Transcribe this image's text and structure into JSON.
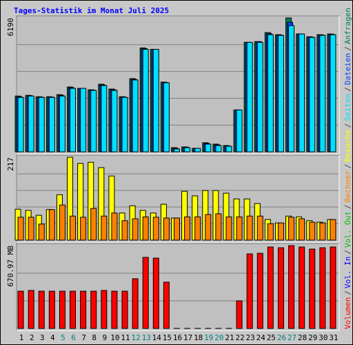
{
  "chart_data": [
    {
      "type": "bar",
      "title": "Tages-Statistik im Monat Juli 2025",
      "ylim": [
        0,
        6190
      ],
      "yticks": [
        6190
      ],
      "grid_divisions": 5,
      "series": [
        {
          "color": "#00805C",
          "values": [
            2579,
            2611,
            2547,
            2547,
            2644,
            2998,
            2934,
            2869,
            3127,
            2902,
            2547,
            3385,
            4804,
            4739,
            3224,
            193,
            226,
            161,
            419,
            355,
            290,
            1934,
            5062,
            5094,
            5513,
            5416,
            6190,
            5449,
            5320,
            5416,
            5449
          ]
        },
        {
          "color": "#0040FF",
          "values": [
            2540,
            2590,
            2530,
            2530,
            2610,
            2960,
            2934,
            2850,
            3090,
            2870,
            2530,
            3350,
            4770,
            4739,
            3205,
            160,
            210,
            161,
            385,
            320,
            270,
            1934,
            5062,
            5094,
            5460,
            5400,
            5990,
            5449,
            5300,
            5400,
            5430
          ]
        },
        {
          "color": "#00E0FF",
          "values": [
            2515,
            2579,
            2515,
            2515,
            2579,
            2934,
            2934,
            2837,
            3063,
            2837,
            2515,
            3321,
            4739,
            4739,
            3192,
            129,
            193,
            161,
            355,
            290,
            258,
            1934,
            5062,
            5062,
            5416,
            5384,
            5836,
            5449,
            5288,
            5384,
            5416
          ]
        }
      ]
    },
    {
      "type": "bar",
      "ylim": [
        0,
        217
      ],
      "yticks": [
        217
      ],
      "grid_divisions": 5,
      "series": [
        {
          "color": "#FFFF00",
          "values": [
            81,
            78,
            65,
            80,
            119,
            217,
            201,
            204,
            190,
            168,
            71,
            90,
            78,
            71,
            94,
            58,
            128,
            116,
            130,
            130,
            123,
            108,
            108,
            96,
            54,
            45,
            63,
            61,
            51,
            47,
            54
          ]
        },
        {
          "color": "#FF8000",
          "values": [
            60,
            60,
            42,
            80,
            92,
            63,
            60,
            83,
            63,
            71,
            51,
            56,
            61,
            60,
            58,
            58,
            61,
            61,
            67,
            69,
            61,
            61,
            63,
            63,
            43,
            45,
            60,
            56,
            47,
            45,
            54
          ]
        }
      ]
    },
    {
      "type": "bar",
      "ylim": [
        0,
        670.97
      ],
      "yticks": [
        {
          "value": 670.97,
          "label": "670.97 MB"
        }
      ],
      "grid_divisions": 3,
      "categories": [
        "1",
        "2",
        "3",
        "4",
        "5",
        "6",
        "7",
        "8",
        "9",
        "10",
        "11",
        "12",
        "13",
        "14",
        "15",
        "16",
        "17",
        "18",
        "19",
        "20",
        "21",
        "22",
        "23",
        "24",
        "25",
        "26",
        "27",
        "28",
        "29",
        "30",
        "31"
      ],
      "category_colors": [
        "#000000",
        "#000000",
        "#000000",
        "#000000",
        "#008080",
        "#008080",
        "#000000",
        "#000000",
        "#000000",
        "#000000",
        "#000000",
        "#008080",
        "#008080",
        "#000000",
        "#000000",
        "#000000",
        "#000000",
        "#000000",
        "#008080",
        "#008080",
        "#000000",
        "#000000",
        "#000000",
        "#000000",
        "#000000",
        "#008080",
        "#008080",
        "#000000",
        "#000000",
        "#000000",
        "#000000"
      ],
      "series": [
        {
          "color": "#FF0000",
          "values": [
            302,
            308,
            302,
            302,
            302,
            302,
            302,
            302,
            308,
            302,
            302,
            403,
            576,
            570,
            375,
            0.5,
            0.5,
            0.5,
            0.5,
            0.5,
            0.5,
            224,
            604,
            609,
            660,
            654,
            670.97,
            660,
            643,
            654,
            660
          ]
        }
      ],
      "legend_separator": "/",
      "legend": [
        {
          "name": "Volumen",
          "color": "#FF0000"
        },
        {
          "name": "Vol. In",
          "color": "#0000FF"
        },
        {
          "name": "Vol. Out",
          "color": "#00C000"
        },
        {
          "name": "Rechner",
          "color": "#FF8000"
        },
        {
          "name": "Besuche",
          "color": "#FFFF00"
        },
        {
          "name": "Seiten",
          "color": "#00E0FF"
        },
        {
          "name": "Dateien",
          "color": "#0040FF"
        },
        {
          "name": "Anfragen",
          "color": "#00805C"
        }
      ]
    }
  ]
}
